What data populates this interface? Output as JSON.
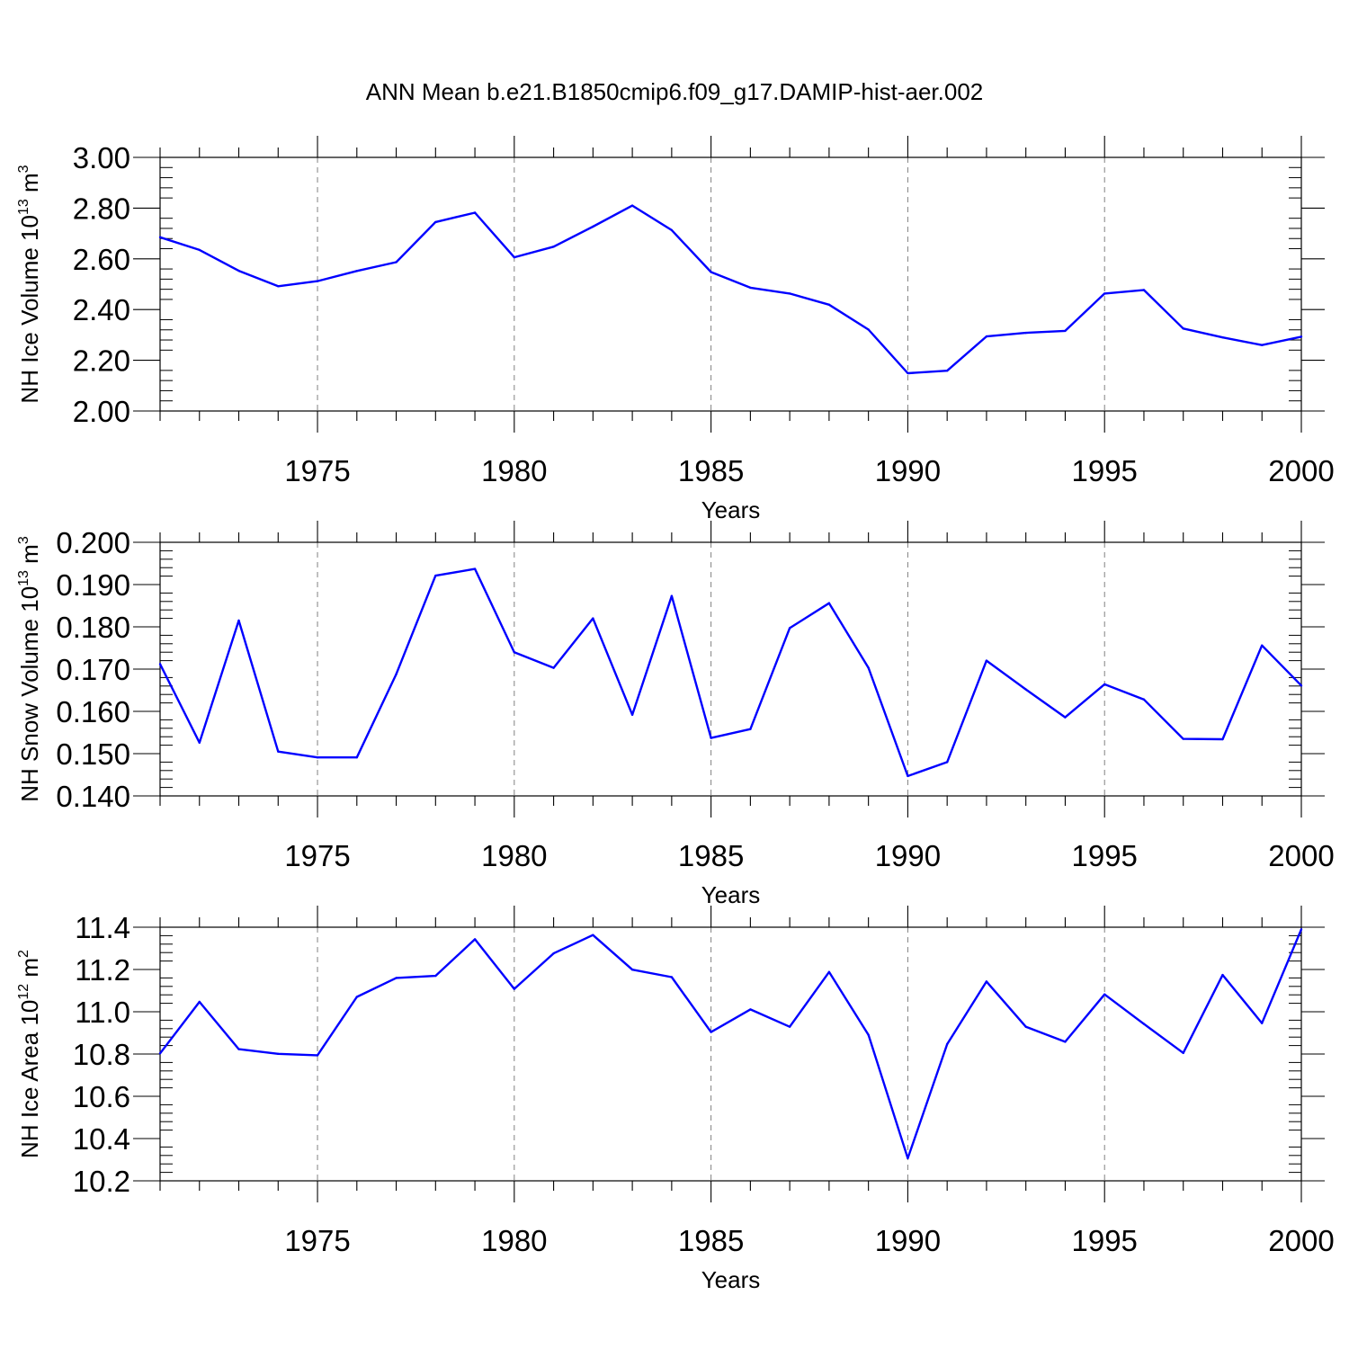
{
  "title": "ANN Mean b.e21.B1850cmip6.f09_g17.DAMIP-hist-aer.002",
  "colors": {
    "line": "#0000ff",
    "axis": "#000000",
    "grid": "#808080"
  },
  "chart_data": [
    {
      "type": "line",
      "xlabel": "Years",
      "ylabel": {
        "main": "NH Ice Volume 10",
        "exp": "13",
        "unit": " m",
        "unit_exp": "3"
      },
      "xlim": [
        1971,
        2000
      ],
      "ylim": [
        2.0,
        3.0
      ],
      "xticks": [
        "1975",
        "1980",
        "1985",
        "1990",
        "1995",
        "2000"
      ],
      "yticks": [
        "2.00",
        "2.20",
        "2.40",
        "2.60",
        "2.80",
        "3.00"
      ],
      "grid": "vertical dashed at major x ticks",
      "x": [
        1971,
        1972,
        1973,
        1974,
        1975,
        1976,
        1977,
        1978,
        1979,
        1980,
        1981,
        1982,
        1983,
        1984,
        1985,
        1986,
        1987,
        1988,
        1989,
        1990,
        1991,
        1992,
        1993,
        1994,
        1995,
        1996,
        1997,
        1998,
        1999,
        2000
      ],
      "values": [
        2.685,
        2.635,
        2.553,
        2.492,
        2.512,
        2.552,
        2.587,
        2.745,
        2.782,
        2.606,
        2.648,
        2.727,
        2.81,
        2.713,
        2.548,
        2.486,
        2.463,
        2.419,
        2.321,
        2.149,
        2.159,
        2.294,
        2.308,
        2.316,
        2.463,
        2.477,
        2.325,
        2.29,
        2.26,
        2.293
      ]
    },
    {
      "type": "line",
      "xlabel": "Years",
      "ylabel": {
        "main": "NH Snow Volume 10",
        "exp": "13",
        "unit": " m",
        "unit_exp": "3"
      },
      "xlim": [
        1971,
        2000
      ],
      "ylim": [
        0.14,
        0.2
      ],
      "xticks": [
        "1975",
        "1980",
        "1985",
        "1990",
        "1995",
        "2000"
      ],
      "yticks": [
        "0.140",
        "0.150",
        "0.160",
        "0.170",
        "0.180",
        "0.190",
        "0.200"
      ],
      "grid": "vertical dashed at major x ticks",
      "x": [
        1971,
        1972,
        1973,
        1974,
        1975,
        1976,
        1977,
        1978,
        1979,
        1980,
        1981,
        1982,
        1983,
        1984,
        1985,
        1986,
        1987,
        1988,
        1989,
        1990,
        1991,
        1992,
        1993,
        1994,
        1995,
        1996,
        1997,
        1998,
        1999,
        2000
      ],
      "values": [
        0.1712,
        0.1526,
        0.1815,
        0.1505,
        0.1491,
        0.1491,
        0.1688,
        0.1921,
        0.1937,
        0.174,
        0.1703,
        0.182,
        0.1592,
        0.1873,
        0.1537,
        0.1558,
        0.1797,
        0.1856,
        0.1703,
        0.1447,
        0.148,
        0.172,
        0.1652,
        0.1586,
        0.1664,
        0.1628,
        0.1535,
        0.1534,
        0.1756,
        0.1661
      ]
    },
    {
      "type": "line",
      "xlabel": "Years",
      "ylabel": {
        "main": "NH Ice Area 10",
        "exp": "12",
        "unit": " m",
        "unit_exp": "2"
      },
      "xlim": [
        1971,
        2000
      ],
      "ylim": [
        10.2,
        11.4
      ],
      "xticks": [
        "1975",
        "1980",
        "1985",
        "1990",
        "1995",
        "2000"
      ],
      "yticks": [
        "10.2",
        "10.4",
        "10.6",
        "10.8",
        "11.0",
        "11.2",
        "11.4"
      ],
      "grid": "vertical dashed at major x ticks",
      "x": [
        1971,
        1972,
        1973,
        1974,
        1975,
        1976,
        1977,
        1978,
        1979,
        1980,
        1981,
        1982,
        1983,
        1984,
        1985,
        1986,
        1987,
        1988,
        1989,
        1990,
        1991,
        1992,
        1993,
        1994,
        1995,
        1996,
        1997,
        1998,
        1999,
        2000
      ],
      "values": [
        10.803,
        11.047,
        10.823,
        10.801,
        10.794,
        11.07,
        11.16,
        11.17,
        11.343,
        11.108,
        11.276,
        11.363,
        11.199,
        11.164,
        10.904,
        11.011,
        10.929,
        11.188,
        10.89,
        10.307,
        10.847,
        11.143,
        10.929,
        10.858,
        11.082,
        10.942,
        10.805,
        11.174,
        10.946,
        11.39
      ]
    }
  ]
}
